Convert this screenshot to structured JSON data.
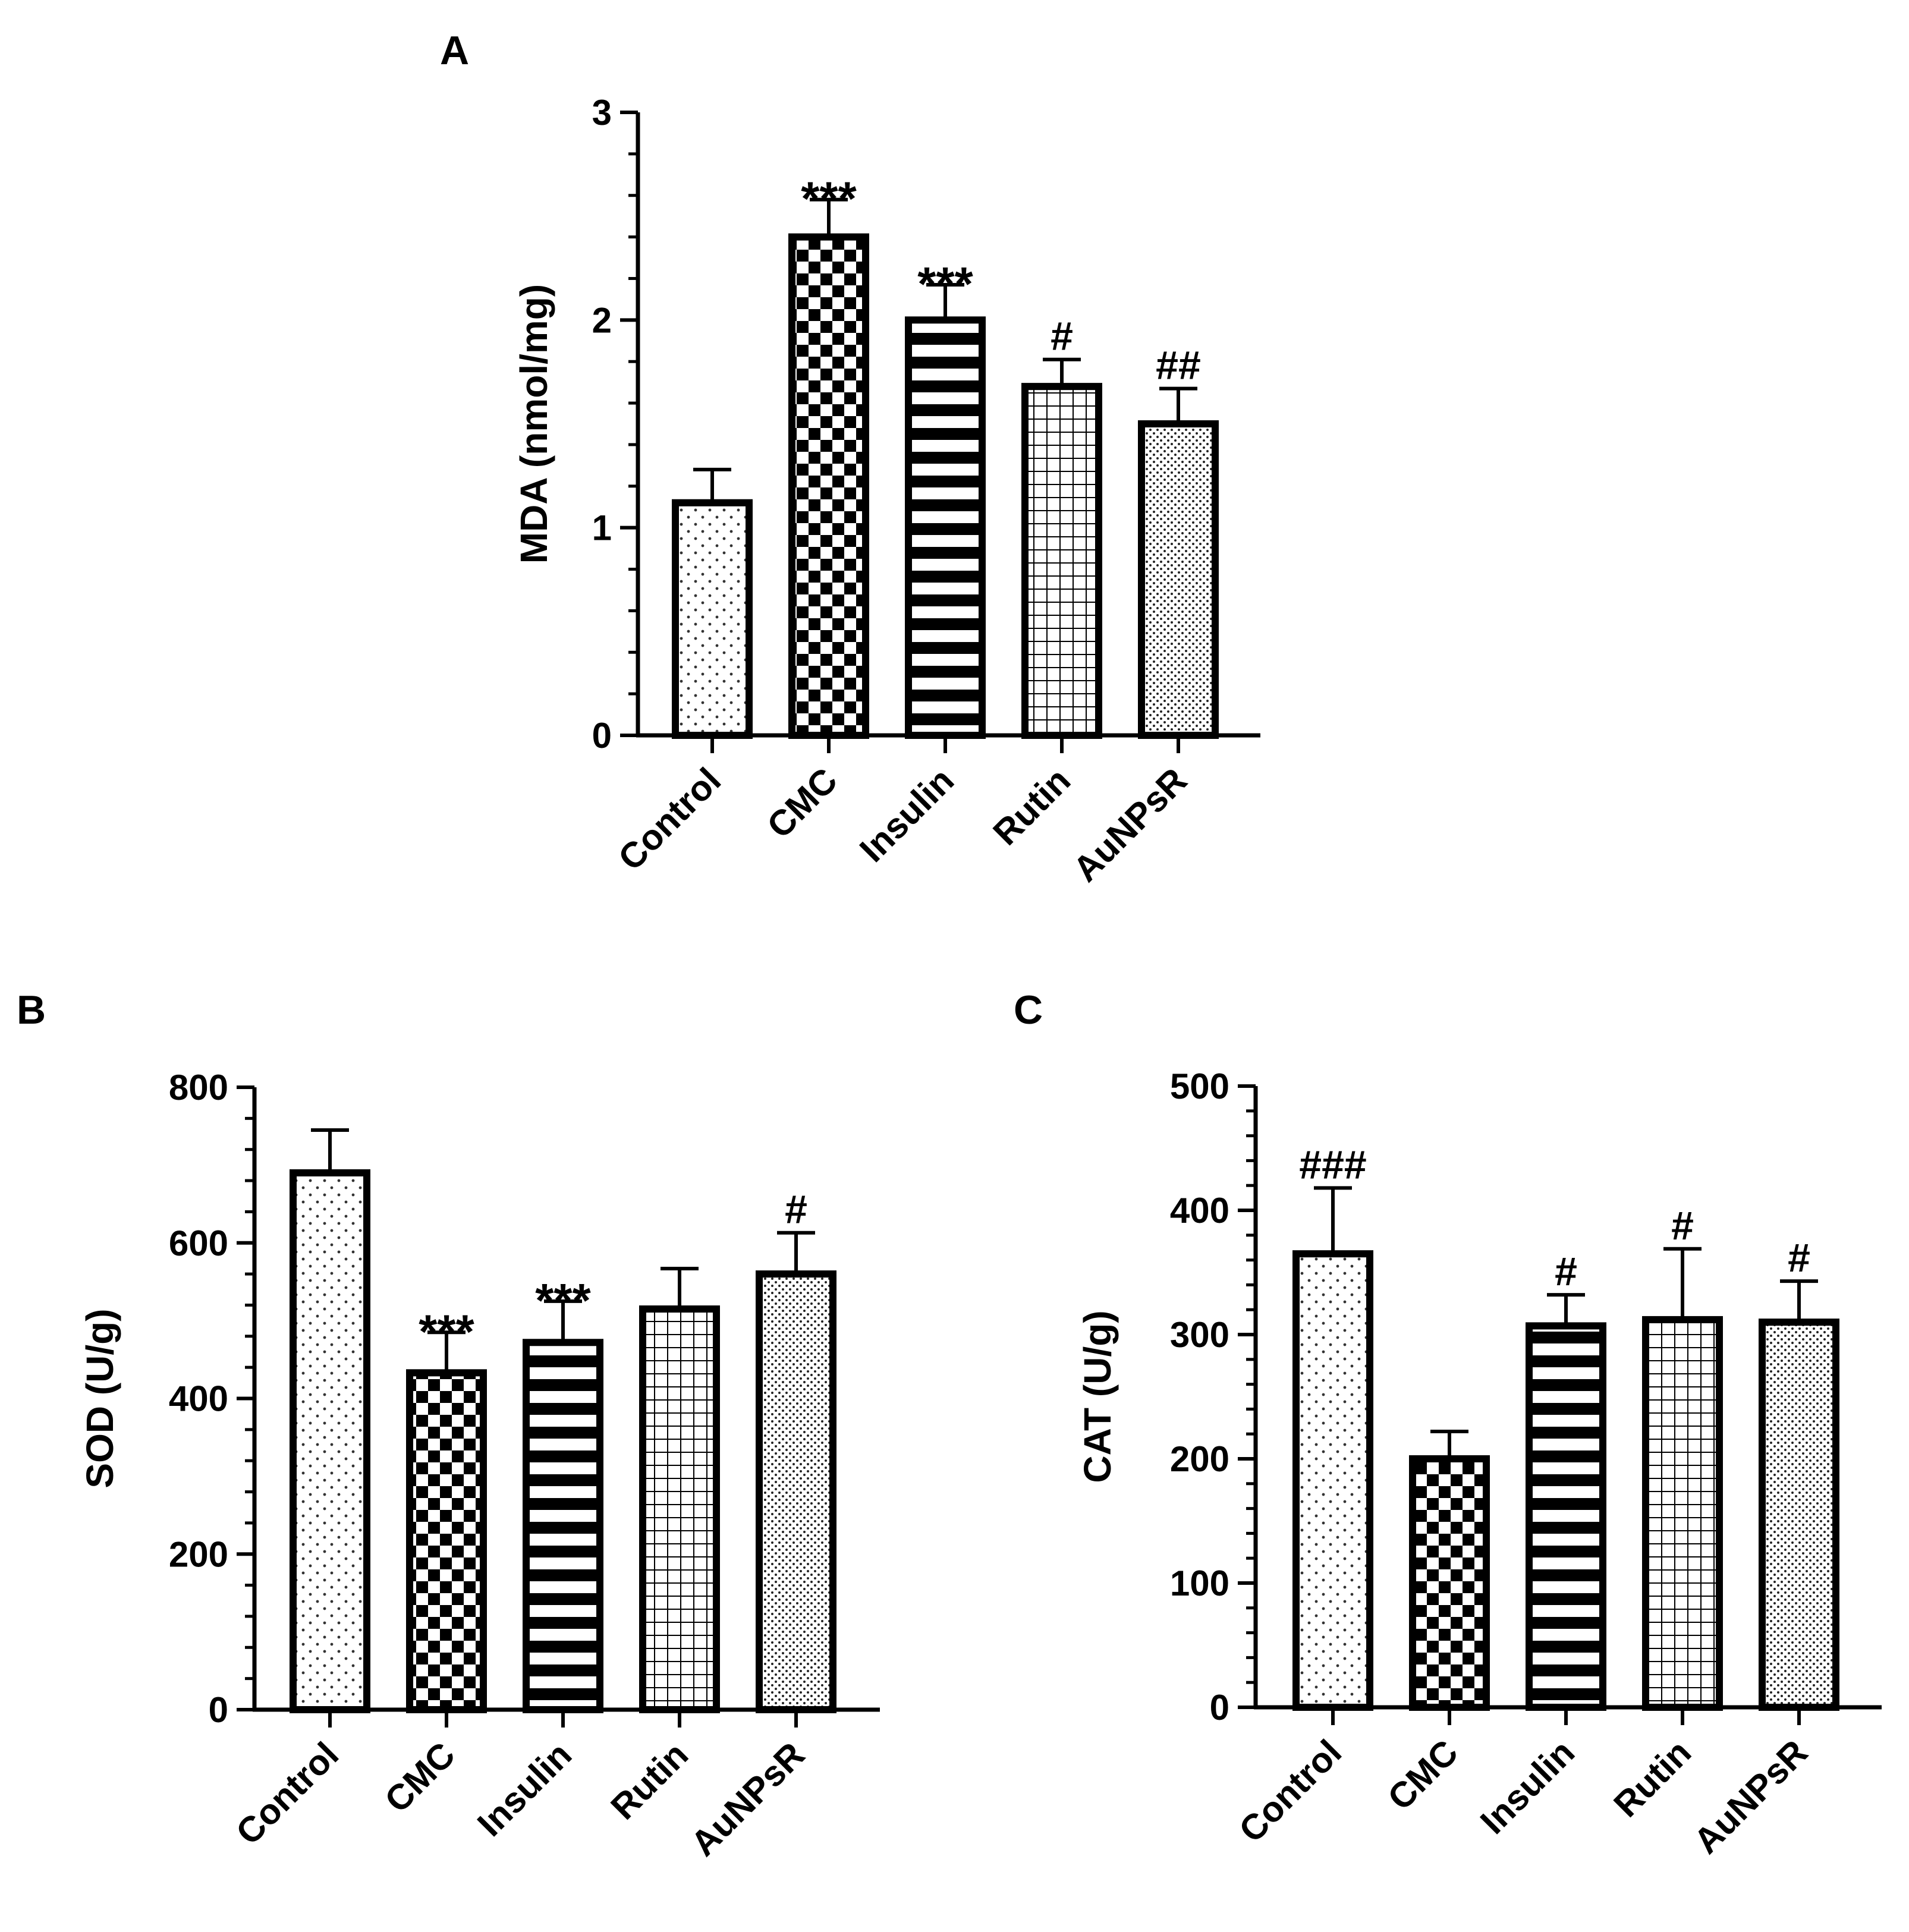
{
  "chart_data": [
    {
      "panel": "A",
      "type": "bar",
      "ylabel": "MDA (nmol/mg)",
      "ylim": [
        0,
        3
      ],
      "yticks": [
        "0",
        "1",
        "2",
        "3"
      ],
      "categories": [
        "Control",
        "CMC",
        "Insulin",
        "Rutin",
        "AuNPsR"
      ],
      "values": [
        1.12,
        2.4,
        2.0,
        1.68,
        1.5
      ],
      "errors": [
        0.16,
        0.18,
        0.17,
        0.13,
        0.17
      ],
      "significance": [
        "",
        "***",
        "***",
        "#",
        "##"
      ]
    },
    {
      "panel": "B",
      "type": "bar",
      "ylabel": "SOD (U/g)",
      "ylim": [
        0,
        800
      ],
      "yticks": [
        "0",
        "200",
        "400",
        "600",
        "800"
      ],
      "categories": [
        "Control",
        "CMC",
        "Insulin",
        "Rutin",
        "AuNPsR"
      ],
      "values": [
        690,
        433,
        472,
        515,
        560
      ],
      "errors": [
        55,
        52,
        53,
        52,
        53
      ],
      "significance": [
        "",
        "***",
        "***",
        "",
        "#"
      ]
    },
    {
      "panel": "C",
      "type": "bar",
      "ylabel": "CAT (U/g)",
      "ylim": [
        0,
        500
      ],
      "yticks": [
        "0",
        "100",
        "200",
        "300",
        "400",
        "500"
      ],
      "categories": [
        "Control",
        "CMC",
        "Insulin",
        "Rutin",
        "AuNPsR"
      ],
      "values": [
        365,
        200,
        307,
        312,
        310
      ],
      "errors": [
        53,
        22,
        25,
        57,
        33
      ],
      "significance": [
        "###",
        "",
        "#",
        "#",
        "#"
      ]
    }
  ],
  "style": {
    "bar_stroke": "#000000",
    "bar_fill": "#ffffff",
    "patterns": [
      "sparse-dots",
      "checkerboard",
      "horizontal-stripes",
      "grid",
      "dense-dots"
    ]
  }
}
